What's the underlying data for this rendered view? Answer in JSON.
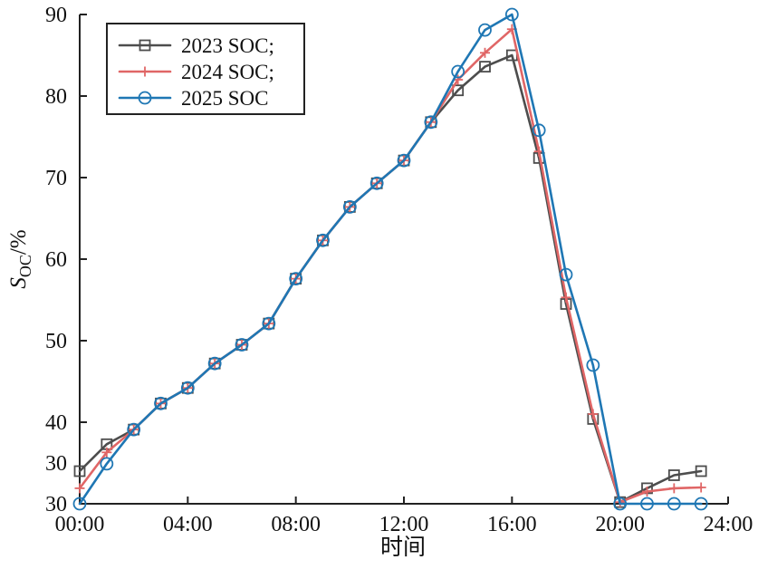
{
  "chart_data": {
    "type": "line",
    "title": "",
    "xlabel": "时间",
    "ylabel": {
      "main": "S",
      "subscript": "OC",
      "suffix": "/%"
    },
    "xlim": [
      0,
      24
    ],
    "ylim": [
      30,
      90
    ],
    "x_ticks": [
      {
        "value": 0,
        "label": "00:00"
      },
      {
        "value": 4,
        "label": "04:00"
      },
      {
        "value": 8,
        "label": "08:00"
      },
      {
        "value": 12,
        "label": "12:00"
      },
      {
        "value": 16,
        "label": "16:00"
      },
      {
        "value": 20,
        "label": "20:00"
      },
      {
        "value": 24,
        "label": "24:00"
      }
    ],
    "y_ticks": [
      {
        "value": 30,
        "label": "30"
      },
      {
        "value": 40,
        "label": "40"
      },
      {
        "value": 50,
        "label": "50"
      },
      {
        "value": 60,
        "label": "60"
      },
      {
        "value": 70,
        "label": "70"
      },
      {
        "value": 80,
        "label": "80"
      },
      {
        "value": 90,
        "label": "90"
      }
    ],
    "extra_y_labels": [
      {
        "value": 35,
        "label": "30"
      }
    ],
    "legend": {
      "position": "top-left",
      "entries": [
        "2023 SOC;",
        "2024 SOC;",
        "2025 SOC"
      ]
    },
    "series": [
      {
        "name": "2023 SOC;",
        "color": "#4d4d4d",
        "marker": "square",
        "x": [
          0,
          1,
          2,
          3,
          4,
          5,
          6,
          7,
          8,
          9,
          10,
          11,
          12,
          13,
          14,
          15,
          16,
          17,
          18,
          19,
          20,
          21,
          22,
          23
        ],
        "y": [
          34.0,
          37.3,
          39.1,
          42.3,
          44.2,
          47.2,
          49.5,
          52.1,
          57.6,
          62.3,
          66.4,
          69.3,
          72.1,
          76.8,
          80.7,
          83.6,
          85.0,
          72.4,
          54.5,
          40.4,
          30.2,
          31.9,
          33.5,
          34.0
        ]
      },
      {
        "name": "2024 SOC;",
        "color": "#e06666",
        "marker": "plus",
        "x": [
          0,
          1,
          2,
          3,
          4,
          5,
          6,
          7,
          8,
          9,
          10,
          11,
          12,
          13,
          14,
          15,
          16,
          17,
          18,
          19,
          20,
          21,
          22,
          23
        ],
        "y": [
          31.9,
          36.3,
          39.1,
          42.3,
          44.2,
          47.2,
          49.5,
          52.1,
          57.6,
          62.3,
          66.4,
          69.3,
          72.1,
          76.8,
          82.0,
          85.3,
          88.2,
          73.2,
          55.3,
          41.0,
          30.2,
          31.5,
          31.9,
          32.0
        ]
      },
      {
        "name": "2025 SOC",
        "color": "#1f77b4",
        "marker": "circle",
        "x": [
          0,
          1,
          2,
          3,
          4,
          5,
          6,
          7,
          8,
          9,
          10,
          11,
          12,
          13,
          14,
          15,
          16,
          17,
          18,
          19,
          20,
          21,
          22,
          23
        ],
        "y": [
          30.0,
          34.9,
          39.1,
          42.3,
          44.2,
          47.2,
          49.5,
          52.1,
          57.6,
          62.3,
          66.4,
          69.3,
          72.1,
          76.8,
          83.0,
          88.1,
          90.0,
          75.8,
          58.1,
          47.0,
          30.0,
          30.0,
          30.0,
          30.0
        ]
      }
    ],
    "grid": false
  }
}
